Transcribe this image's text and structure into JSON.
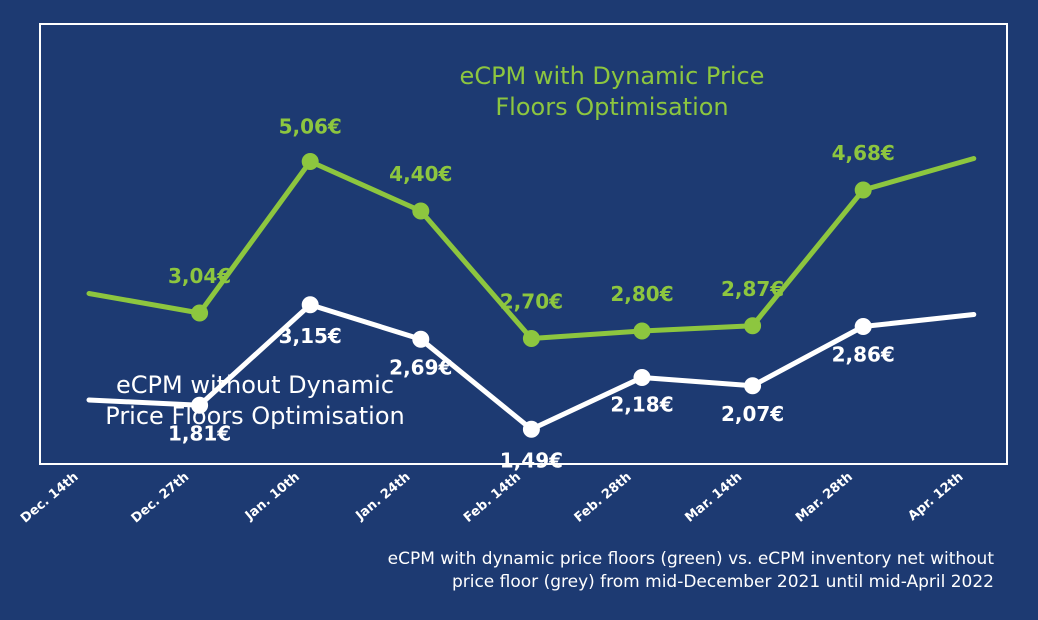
{
  "colors": {
    "background": "#1d3a72",
    "frame": "#ffffff",
    "green_series": "#8dc63f",
    "white_series": "#ffffff"
  },
  "caption": {
    "line1": "eCPM with dynamic price floors (green) vs. eCPM inventory net without",
    "line2": "price floor (grey) from mid-December 2021 until mid-April 2022"
  },
  "chart_data": {
    "type": "line",
    "title": "",
    "xlabel": "",
    "ylabel": "",
    "grid": false,
    "ylim": [
      0,
      6
    ],
    "categories": [
      "Dec. 14th",
      "Dec. 27th",
      "Jan. 10th",
      "Jan. 24th",
      "Feb. 14th",
      "Feb. 28th",
      "Mar. 14th",
      "Mar. 28th",
      "Apr. 12th"
    ],
    "series": [
      {
        "name": "eCPM with Dynamic Price Floors Optimisation",
        "name_lines": [
          "eCPM with Dynamic Price",
          "Floors Optimisation"
        ],
        "color": "#8dc63f",
        "values": [
          3.3,
          3.04,
          5.06,
          4.4,
          2.7,
          2.8,
          2.87,
          4.68,
          5.1
        ],
        "labels": [
          "",
          "3,04€",
          "5,06€",
          "4,40€",
          "2,70€",
          "2,80€",
          "2,87€",
          "4,68€",
          ""
        ],
        "markers": [
          false,
          true,
          true,
          true,
          true,
          true,
          true,
          true,
          false
        ]
      },
      {
        "name": "eCPM without Dynamic Price Floors Optimisation",
        "name_lines": [
          "eCPM without Dynamic",
          "Price Floors Optimisation"
        ],
        "color": "#ffffff",
        "values": [
          1.88,
          1.81,
          3.15,
          2.69,
          1.49,
          2.18,
          2.07,
          2.86,
          3.02
        ],
        "labels": [
          "",
          "1,81€",
          "3,15€",
          "2,69€",
          "1,49€",
          "2,18€",
          "2,07€",
          "2,86€",
          ""
        ],
        "markers": [
          false,
          true,
          true,
          true,
          true,
          true,
          true,
          true,
          false
        ]
      }
    ]
  }
}
